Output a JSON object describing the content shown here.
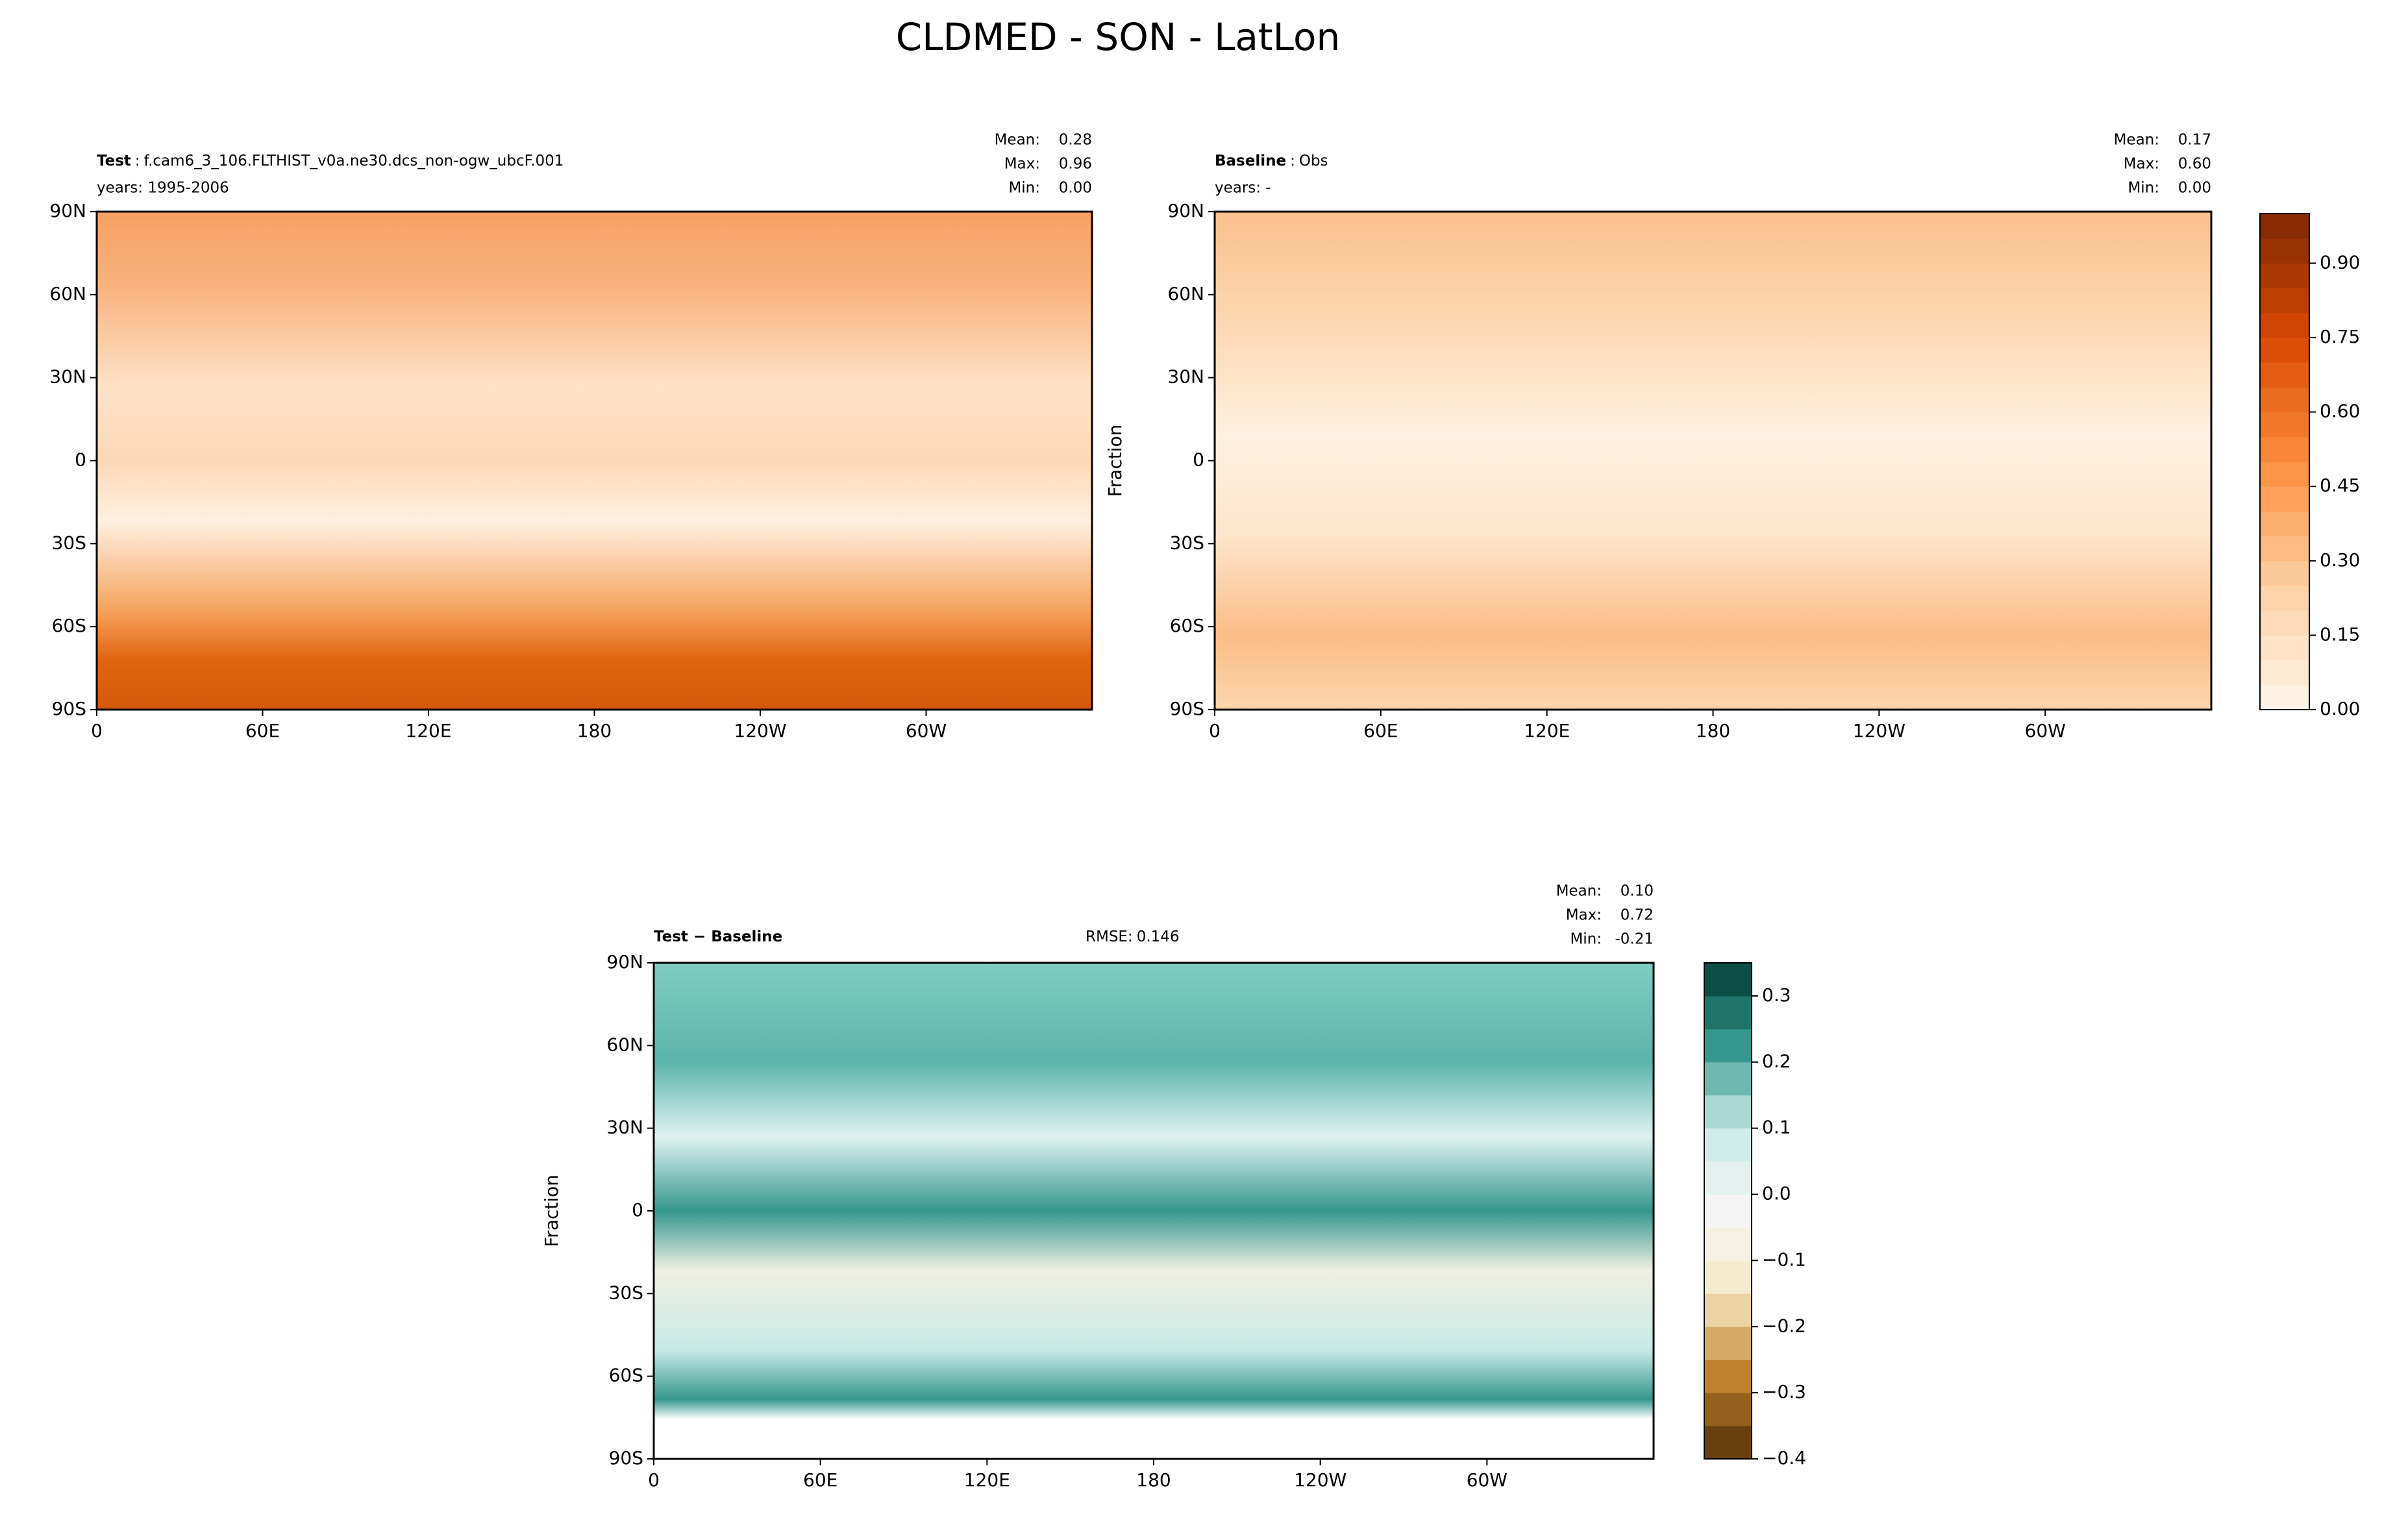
{
  "chart_data": {
    "type": "map",
    "title": "CLDMED - SON - LatLon",
    "panels": [
      {
        "name": "Test",
        "separator": ":",
        "case": "f.cam6_3_106.FLTHIST_v0a.ne30.dcs_non-ogw_ubcF.001",
        "years": "years: 1995-2006",
        "stats": {
          "names": [
            "Mean:",
            "Max:",
            "Min:"
          ],
          "values": [
            0.28,
            0.96,
            0
          ],
          "value_labels": [
            "0.28",
            "0.96",
            "0.00"
          ]
        }
      },
      {
        "name": "Baseline",
        "separator": ":",
        "case": "Obs",
        "years": "years: -",
        "ylabel": "Fraction",
        "stats": {
          "names": [
            "Mean:",
            "Max:",
            "Min:"
          ],
          "values": [
            0.17,
            0.6,
            0
          ],
          "value_labels": [
            "0.17",
            "0.60",
            "0.00"
          ]
        }
      },
      {
        "name": "Test − Baseline",
        "rmse_label": "RMSE:",
        "rmse": 0.146,
        "ylabel": "Fraction",
        "stats": {
          "names": [
            "Mean:",
            "Max:",
            "Min:"
          ],
          "values": [
            0.1,
            0.72,
            -0.21
          ],
          "value_labels": [
            "0.10",
            "0.72",
            "-0.21"
          ]
        }
      }
    ],
    "xlim": [
      0,
      360
    ],
    "xticks": [
      0,
      {
        "value": 60,
        "label": "60E"
      },
      {
        "value": 120,
        "label": "120E"
      },
      180,
      {
        "value": 240,
        "label": "120W"
      },
      {
        "value": 300,
        "label": "60W"
      }
    ],
    "ylim": [
      -90,
      90
    ],
    "yticks": [
      {
        "value": 90,
        "label": "90N"
      },
      {
        "value": 60,
        "label": "60N"
      },
      {
        "value": 30,
        "label": "30N"
      },
      0,
      {
        "value": -30,
        "label": "30S"
      },
      {
        "value": -60,
        "label": "60S"
      },
      {
        "value": -90,
        "label": "90S"
      }
    ],
    "colorbars": [
      {
        "lim": [
          0,
          1
        ],
        "levels": 20,
        "colors": [
          "#fff5eb",
          "#fdd0a2",
          "#fd8d3c",
          "#d94801",
          "#7f2704"
        ],
        "ticks": [
          {
            "value": 0,
            "label": "0.00"
          },
          {
            "value": 0.15,
            "label": "0.15"
          },
          {
            "value": 0.3,
            "label": "0.30"
          },
          {
            "value": 0.45,
            "label": "0.45"
          },
          {
            "value": 0.6,
            "label": "0.60"
          },
          {
            "value": 0.75,
            "label": "0.75"
          },
          {
            "value": 0.9,
            "label": "0.90"
          }
        ]
      },
      {
        "lim": [
          -0.4,
          0.35
        ],
        "levels": 15,
        "colors": [
          "#543005",
          "#bf812d",
          "#f6e8c3",
          "#f5f5f5",
          "#c7eae5",
          "#35978f",
          "#003c30"
        ],
        "ticks": [
          {
            "value": -0.4,
            "label": "−0.4"
          },
          {
            "value": -0.3,
            "label": "−0.3"
          },
          {
            "value": -0.2,
            "label": "−0.2"
          },
          {
            "value": -0.1,
            "label": "−0.1"
          },
          {
            "value": 0,
            "label": "0.0"
          },
          {
            "value": 0.1,
            "label": "0.1"
          },
          {
            "value": 0.2,
            "label": "0.2"
          },
          {
            "value": 0.3,
            "label": "0.3"
          }
        ]
      }
    ]
  }
}
